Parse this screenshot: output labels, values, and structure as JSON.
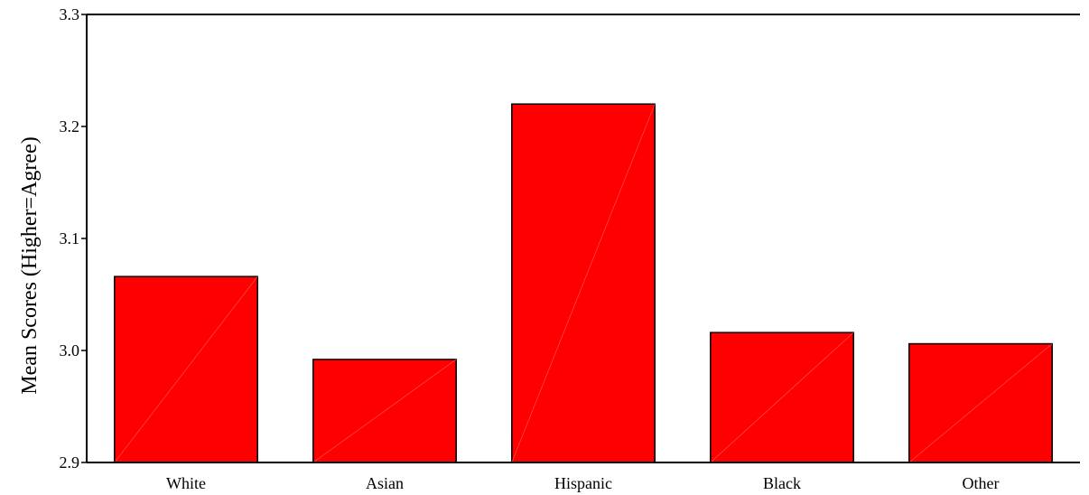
{
  "chart_data": {
    "type": "bar",
    "title": "",
    "xlabel": "",
    "ylabel": "Mean Scores (Higher=Agree)",
    "categories": [
      "White",
      "Asian",
      "Hispanic",
      "Black",
      "Other"
    ],
    "values": [
      3.066,
      2.992,
      3.22,
      3.016,
      3.006
    ],
    "ylim": [
      2.9,
      3.3
    ],
    "yticks": [
      "2.9",
      "3.0",
      "3.1",
      "3.2",
      "3.3"
    ],
    "grid": false,
    "legend": "none",
    "bar_color": "#ff0000",
    "edge_color": "#000000"
  }
}
